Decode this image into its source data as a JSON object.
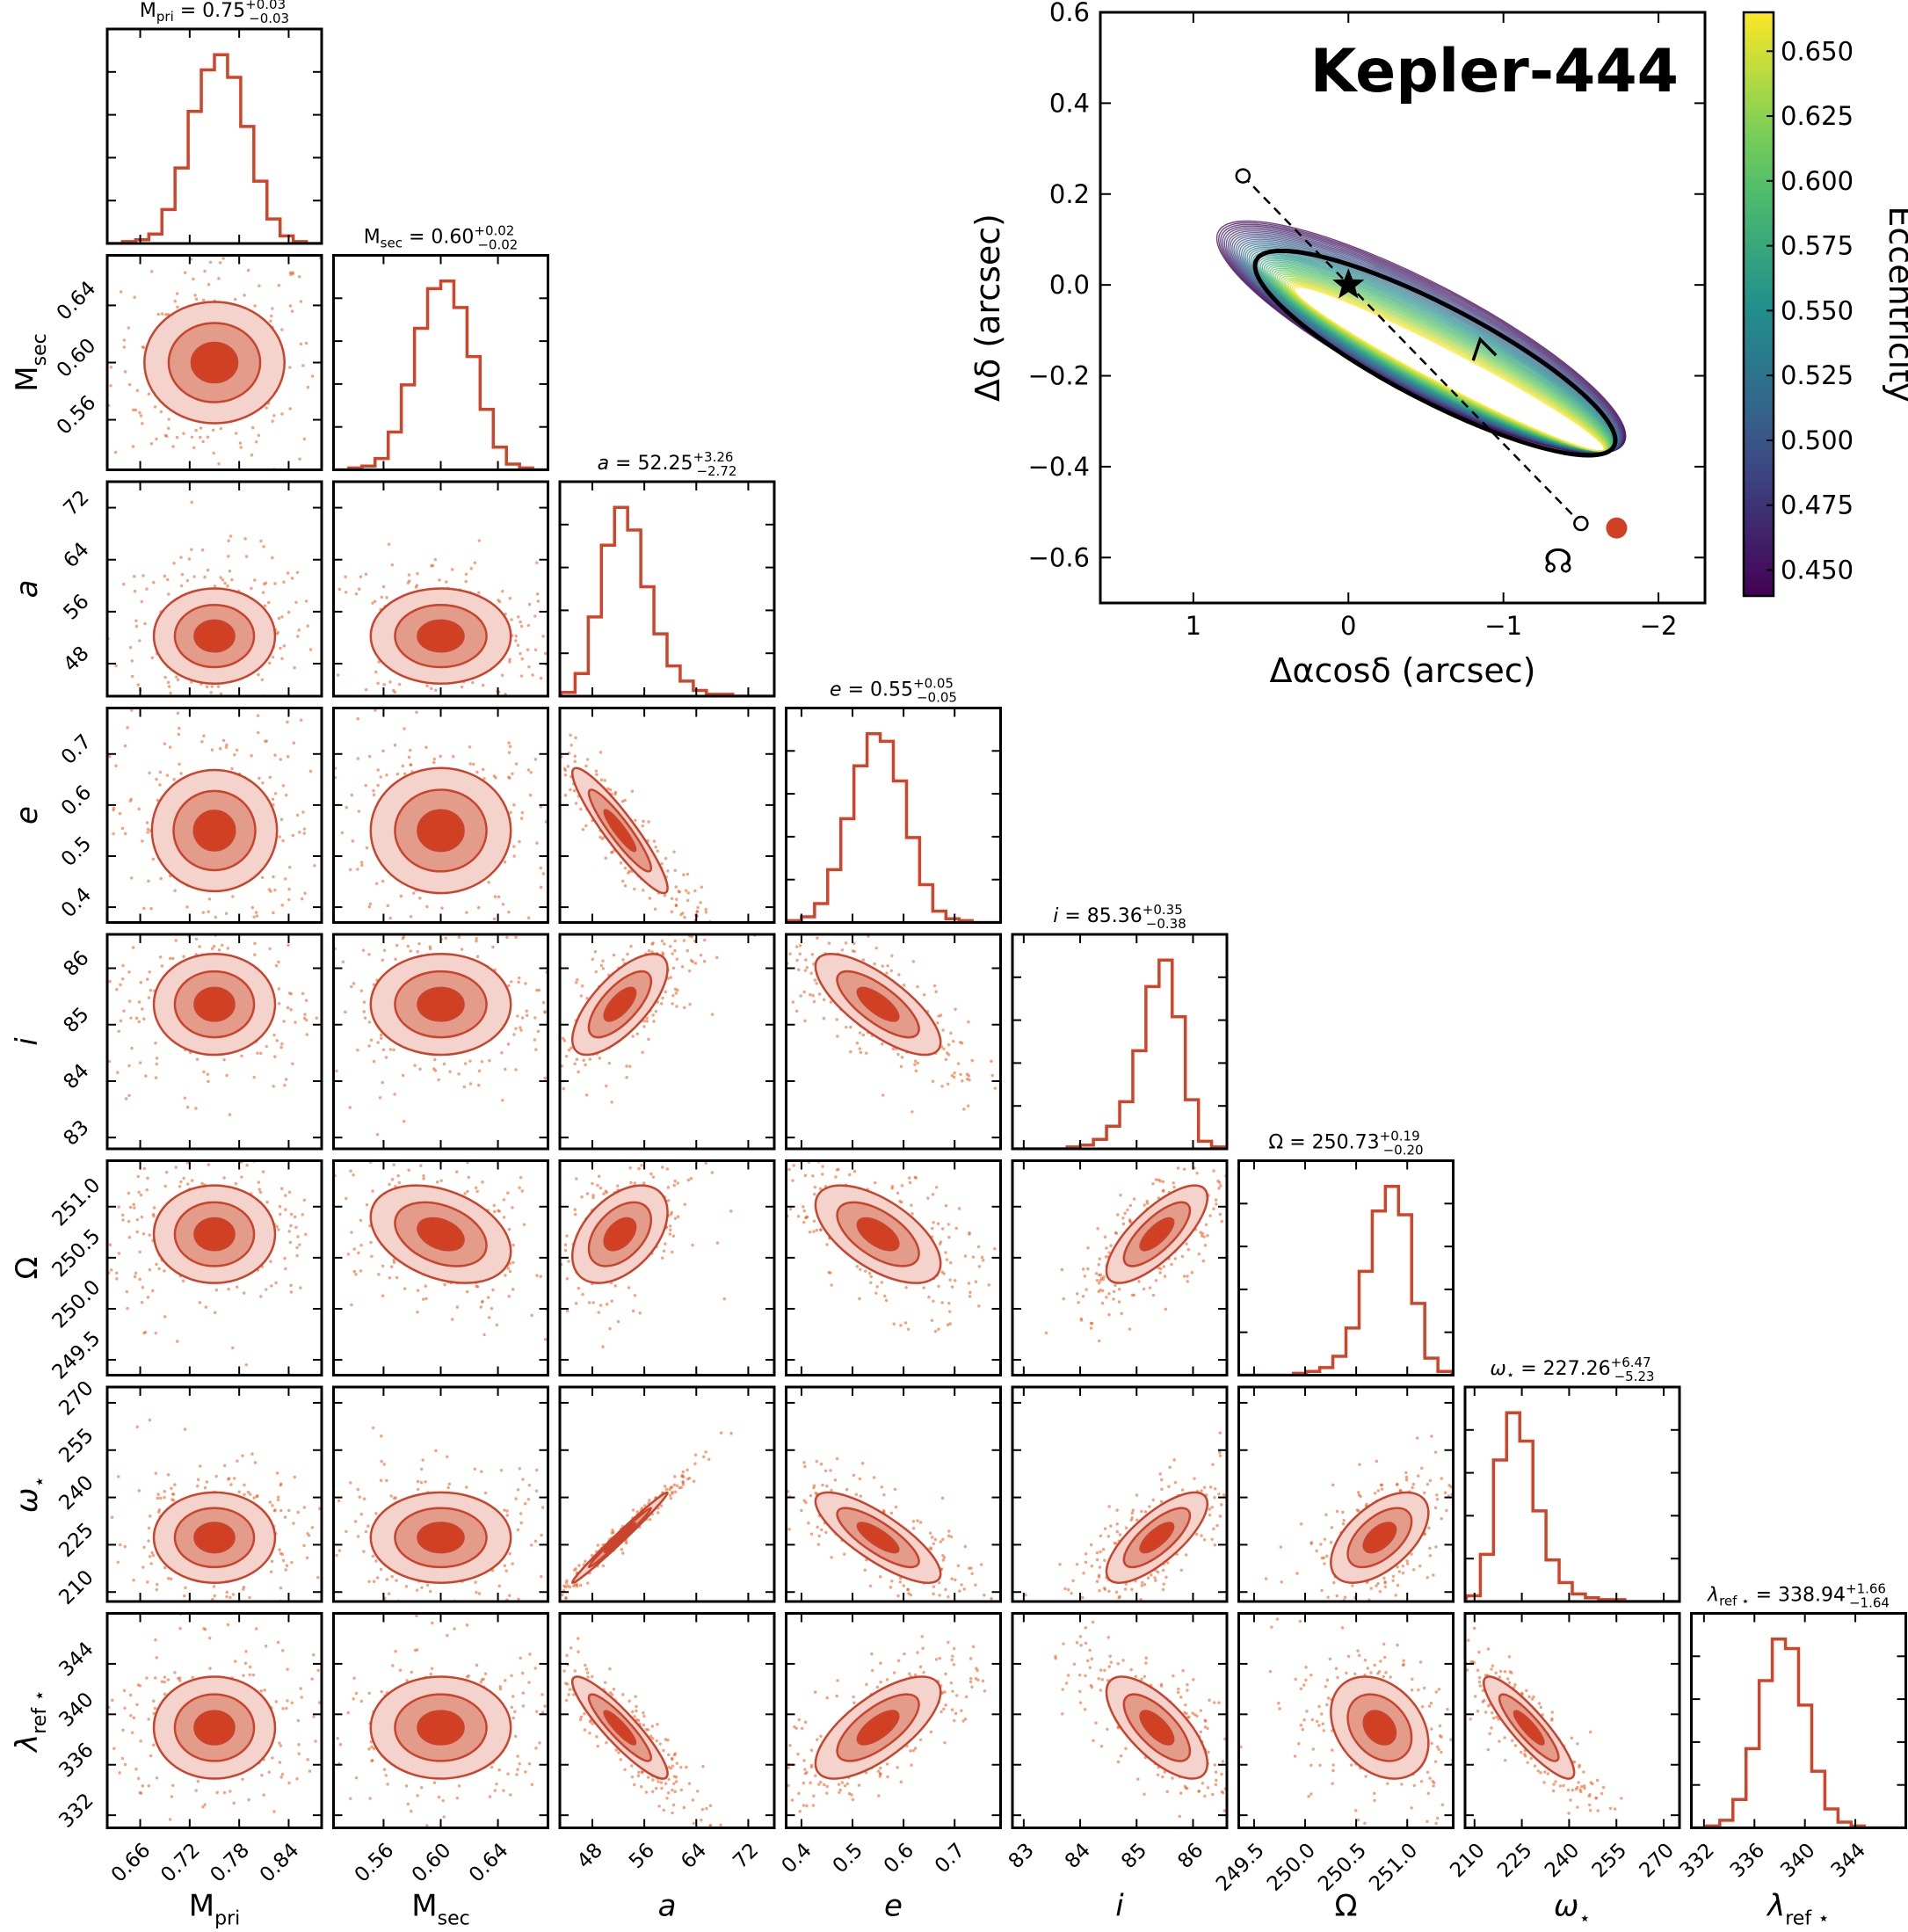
{
  "chart_data": [
    {
      "type": "corner",
      "params": [
        {
          "key": "mpri",
          "base": "M",
          "sub": "pri",
          "italic": false,
          "range": [
            0.62,
            0.88
          ],
          "ticks": [
            0.66,
            0.72,
            0.78,
            0.84
          ],
          "tick_labels": [
            "0.66",
            "0.72",
            "0.78",
            "0.84"
          ],
          "median": 0.75,
          "title": {
            "name": "M",
            "sub": "pri",
            "value": "0.75",
            "plus": "+0.03",
            "minus": "−0.03"
          },
          "hist": [
            0,
            1,
            2,
            5,
            18,
            40,
            70,
            92,
            100,
            88,
            62,
            33,
            13,
            4,
            1,
            0
          ]
        },
        {
          "key": "msec",
          "base": "M",
          "sub": "sec",
          "italic": false,
          "range": [
            0.525,
            0.675
          ],
          "ticks": [
            0.56,
            0.6,
            0.64
          ],
          "tick_labels": [
            "0.56",
            "0.60",
            "0.64"
          ],
          "median": 0.6,
          "title": {
            "name": "M",
            "sub": "sec",
            "value": "0.60",
            "plus": "+0.02",
            "minus": "−0.02"
          },
          "hist": [
            0,
            1,
            2,
            6,
            20,
            45,
            75,
            96,
            100,
            86,
            60,
            32,
            12,
            3,
            1,
            0
          ]
        },
        {
          "key": "a",
          "base": "a",
          "sub": "",
          "italic": true,
          "range": [
            43,
            76
          ],
          "ticks": [
            48,
            56,
            64,
            72
          ],
          "tick_labels": [
            "48",
            "56",
            "64",
            "72"
          ],
          "median": 52.25,
          "title": {
            "name": "a",
            "sub": "",
            "value": "52.25",
            "plus": "+3.26",
            "minus": "−2.72"
          },
          "hist": [
            2,
            12,
            42,
            80,
            100,
            88,
            58,
            33,
            16,
            8,
            3,
            1,
            1,
            0,
            0,
            0
          ]
        },
        {
          "key": "e",
          "base": "e",
          "sub": "",
          "italic": true,
          "range": [
            0.37,
            0.79
          ],
          "ticks": [
            0.4,
            0.5,
            0.6,
            0.7
          ],
          "tick_labels": [
            "0.4",
            "0.5",
            "0.6",
            "0.7"
          ],
          "median": 0.55,
          "title": {
            "name": "e",
            "sub": "",
            "value": "0.55",
            "plus": "+0.05",
            "minus": "−0.05"
          },
          "hist": [
            1,
            3,
            10,
            28,
            55,
            83,
            100,
            96,
            75,
            45,
            20,
            6,
            2,
            1,
            0,
            0
          ]
        },
        {
          "key": "i",
          "base": "i",
          "sub": "",
          "italic": true,
          "range": [
            82.8,
            86.6
          ],
          "ticks": [
            83,
            84,
            85,
            86
          ],
          "tick_labels": [
            "83",
            "84",
            "85",
            "86"
          ],
          "median": 85.36,
          "title": {
            "name": "i",
            "sub": "",
            "value": "85.36",
            "plus": "+0.35",
            "minus": "−0.38"
          },
          "hist": [
            0,
            0,
            0,
            0,
            1,
            2,
            5,
            12,
            25,
            52,
            86,
            100,
            70,
            26,
            4,
            1
          ]
        },
        {
          "key": "Omega",
          "base": "Ω",
          "sub": "",
          "italic": false,
          "range": [
            249.35,
            251.45
          ],
          "ticks": [
            249.5,
            250.0,
            250.5,
            251.0
          ],
          "tick_labels": [
            "249.5",
            "250.0",
            "250.5",
            "251.0"
          ],
          "median": 250.73,
          "title": {
            "name": "Ω",
            "sub": "",
            "value": "250.73",
            "plus": "+0.19",
            "minus": "−0.20"
          },
          "hist": [
            0,
            0,
            0,
            0,
            1,
            2,
            4,
            10,
            25,
            55,
            87,
            100,
            85,
            38,
            9,
            2
          ]
        },
        {
          "key": "omega",
          "base": "ω",
          "sub": "⋆",
          "italic": true,
          "range": [
            207,
            275
          ],
          "ticks": [
            210,
            225,
            240,
            255,
            270
          ],
          "tick_labels": [
            "210",
            "225",
            "240",
            "255",
            "270"
          ],
          "median": 227.26,
          "title": {
            "name": "ω",
            "sub": "⋆",
            "value": "227.26",
            "plus": "+6.47",
            "minus": "−5.23"
          },
          "hist": [
            3,
            25,
            75,
            100,
            85,
            48,
            22,
            10,
            4,
            2,
            1,
            1,
            0,
            0,
            0,
            0
          ]
        },
        {
          "key": "lambda",
          "base": "λ",
          "sub": "ref ⋆",
          "italic": true,
          "range": [
            331,
            348
          ],
          "ticks": [
            332,
            336,
            340,
            344
          ],
          "tick_labels": [
            "332",
            "336",
            "340",
            "344"
          ],
          "median": 338.94,
          "title": {
            "name": "λ",
            "sub": "ref ⋆",
            "value": "338.94",
            "plus": "+1.66",
            "minus": "−1.64"
          },
          "hist": [
            0,
            1,
            4,
            15,
            42,
            78,
            100,
            95,
            65,
            30,
            10,
            3,
            1,
            0,
            0,
            0
          ]
        }
      ],
      "correlations": {
        "a|e": -0.92,
        "a|i": 0.7,
        "a|Omega": 0.45,
        "a|omega": 0.99,
        "a|lambda": -0.9,
        "e|i": -0.75,
        "e|Omega": -0.6,
        "e|omega": -0.8,
        "e|lambda": 0.7,
        "i|Omega": 0.75,
        "i|omega": 0.75,
        "i|lambda": -0.7,
        "Omega|omega": 0.55,
        "Omega|lambda": -0.3,
        "omega|lambda": -0.88,
        "msec|Omega": -0.35
      },
      "colors": {
        "hist": "#d0442a",
        "scatter": "#f3500f",
        "contour_line": "#c8442c",
        "fill_outer": "#f4d3cc",
        "fill_mid": "#e49c8a",
        "fill_inner": "#d24024"
      }
    },
    {
      "type": "orbit",
      "title": "Kepler-444",
      "xlabel": "Δαcosδ (arcsec)",
      "ylabel": "Δδ (arcsec)",
      "xlim": [
        1.6,
        -2.3
      ],
      "ylim": [
        -0.7,
        0.6
      ],
      "xticks": [
        1,
        0,
        -1,
        -2
      ],
      "xtick_labels": [
        "1",
        "0",
        "−1",
        "−2"
      ],
      "yticks": [
        -0.6,
        -0.4,
        -0.2,
        0.0,
        0.2,
        0.4,
        0.6
      ],
      "ytick_labels": [
        "−0.6",
        "−0.4",
        "−0.2",
        "0.0",
        "0.2",
        "0.4",
        "0.6"
      ],
      "host_star": [
        0,
        0
      ],
      "ascending_node": [
        -1.5,
        -0.525
      ],
      "descending_node": [
        0.68,
        0.24
      ],
      "companion": [
        -1.73,
        -0.535
      ],
      "best_orbit": {
        "center": [
          -0.56,
          -0.15
        ],
        "semi_major": 1.3,
        "semi_minor": 0.075,
        "angle_deg": 27.5
      },
      "colorbar": {
        "label": "Eccentricity",
        "range": [
          0.44,
          0.665
        ],
        "ticks": [
          0.45,
          0.475,
          0.5,
          0.525,
          0.55,
          0.575,
          0.6,
          0.625,
          0.65
        ],
        "tick_labels": [
          "0.450",
          "0.475",
          "0.500",
          "0.525",
          "0.550",
          "0.575",
          "0.600",
          "0.625",
          "0.650"
        ]
      },
      "node_symbol": "☊"
    }
  ]
}
